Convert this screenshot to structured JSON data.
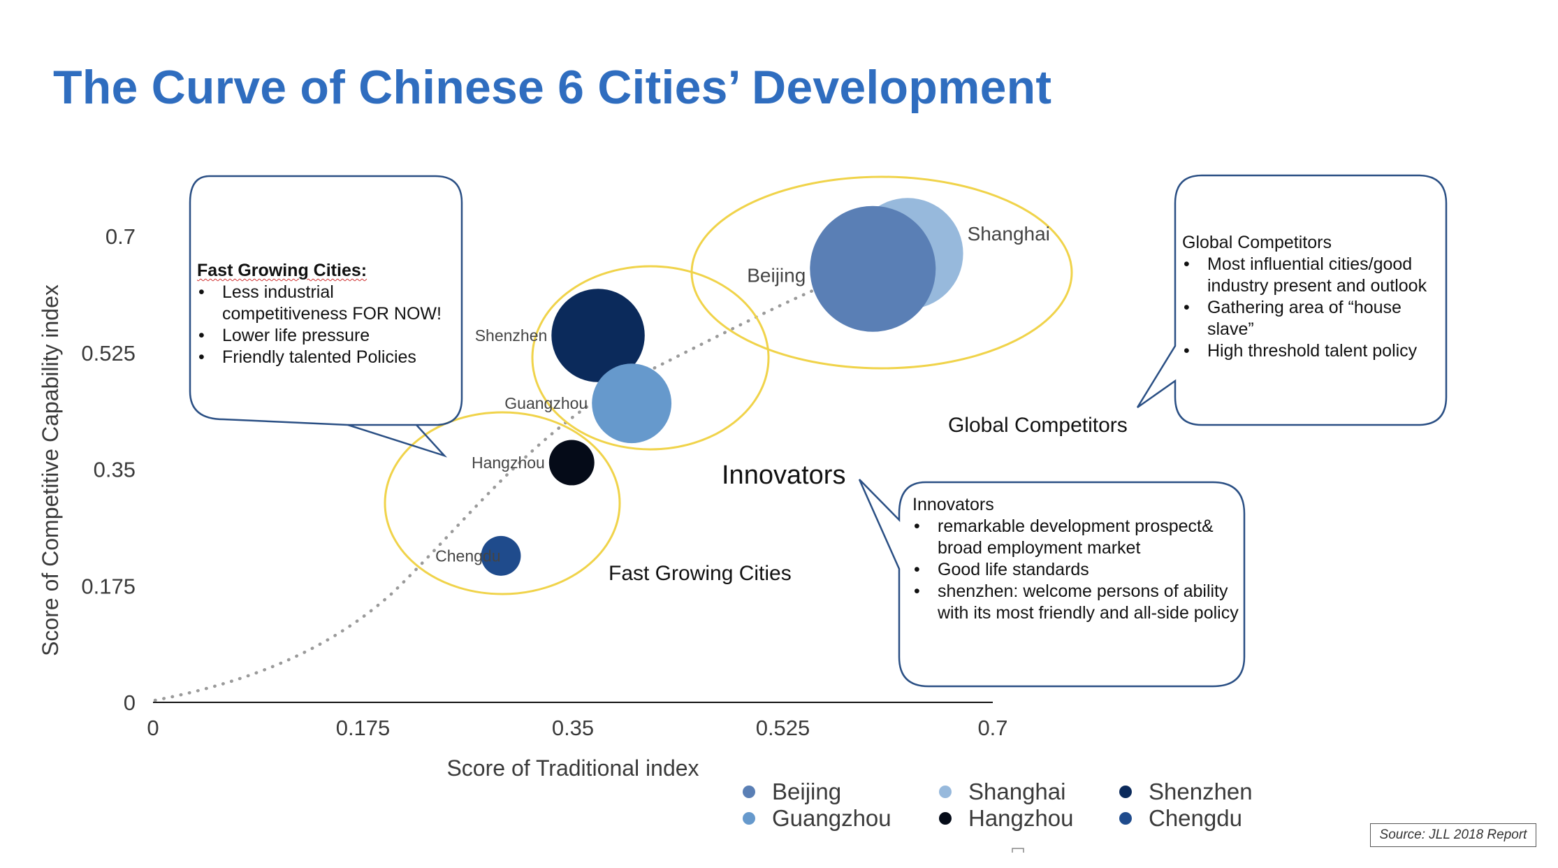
{
  "title": "The Curve of Chinese 6 Cities’ Development",
  "chart_data": {
    "type": "scatter",
    "subtype": "bubble",
    "xlabel": "Score of Traditional index",
    "ylabel": "Score of Competitive Capability index",
    "xlim": [
      0,
      0.7
    ],
    "ylim": [
      0,
      0.7
    ],
    "xticks": [
      "0",
      "0.175",
      "0.35",
      "0.525",
      "0.7"
    ],
    "yticks": [
      "0",
      "0.175",
      "0.35",
      "0.525",
      "0.7"
    ],
    "grid": false,
    "trendline": "dotted curve",
    "legend_position": "bottom",
    "series": [
      {
        "name": "Beijing",
        "x": 0.6,
        "y": 0.651,
        "size": 1.0,
        "color": "#5a7fb5",
        "label_side": "left"
      },
      {
        "name": "Shanghai",
        "x": 0.629,
        "y": 0.674,
        "size": 0.78,
        "color": "#97b9dc",
        "label_side": "right"
      },
      {
        "name": "Shenzhen",
        "x": 0.371,
        "y": 0.551,
        "size": 0.55,
        "color": "#0b2a5b",
        "label_side": "left"
      },
      {
        "name": "Guangzhou",
        "x": 0.399,
        "y": 0.449,
        "size": 0.4,
        "color": "#6699cc",
        "label_side": "left"
      },
      {
        "name": "Hangzhou",
        "x": 0.349,
        "y": 0.36,
        "size": 0.13,
        "color": "#050b18",
        "label_side": "left"
      },
      {
        "name": "Chengdu",
        "x": 0.29,
        "y": 0.22,
        "size": 0.1,
        "color": "#1f4b8c",
        "label_side": "left"
      }
    ]
  },
  "categories": {
    "fast_growing": "Fast Growing Cities",
    "innovators": "Innovators",
    "global": "Global Competitors"
  },
  "callouts": {
    "fast_growing": {
      "heading": "Fast Growing Cities:",
      "bullets": [
        "Less industrial competitiveness FOR NOW!",
        "Lower life pressure",
        "Friendly talented Policies"
      ]
    },
    "global": {
      "heading": "Global Competitors",
      "bullets": [
        "Most influential cities/good industry present and outlook",
        "Gathering area of “house slave”",
        "High threshold talent policy"
      ]
    },
    "innovators": {
      "heading": "Innovators",
      "bullets": [
        "remarkable  development prospect& broad employment market",
        " Good life standards",
        "shenzhen: welcome persons of ability with its most friendly and all-side policy"
      ]
    }
  },
  "colors": {
    "title": "#2f6dbf",
    "group_ellipse": "#f0d34a",
    "callout_border": "#2a4f84",
    "trend": "#9a9a9a"
  },
  "source": "Source: JLL 2018 Report"
}
